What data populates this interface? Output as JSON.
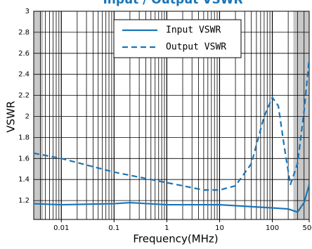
{
  "chart_data": {
    "type": "line",
    "title": "Input / Output VSWR",
    "xlabel": "Frequency(MHz)",
    "ylabel": "VSWR",
    "xscale": "log",
    "xlim": [
      0.003,
      500
    ],
    "ylim": [
      1.02,
      3.0
    ],
    "xticks": [
      0.01,
      0.1,
      1,
      10,
      100,
      500
    ],
    "yticks": [
      1.2,
      1.4,
      1.6,
      1.8,
      2.0,
      2.2,
      2.4,
      2.6,
      2.8,
      3.0
    ],
    "grid": true,
    "shaded_regions": [
      [
        0.003,
        0.0045
      ],
      [
        250,
        500
      ]
    ],
    "legend": "upper center",
    "series": [
      {
        "name": "Input VSWR",
        "color": "#1a75b8",
        "dash": "solid",
        "x": [
          0.003,
          0.01,
          0.1,
          0.2,
          1,
          10,
          100,
          200,
          300,
          400,
          500
        ],
        "values": [
          1.17,
          1.16,
          1.17,
          1.18,
          1.16,
          1.16,
          1.13,
          1.12,
          1.09,
          1.18,
          1.35
        ]
      },
      {
        "name": "Output VSWR",
        "color": "#1a75b8",
        "dash": "dashed",
        "x": [
          0.003,
          0.01,
          0.1,
          1,
          5,
          10,
          20,
          40,
          70,
          100,
          130,
          170,
          220,
          300,
          400,
          500
        ],
        "values": [
          1.65,
          1.6,
          1.47,
          1.37,
          1.3,
          1.3,
          1.34,
          1.55,
          2.0,
          2.18,
          2.1,
          1.7,
          1.35,
          1.55,
          2.05,
          2.55
        ]
      }
    ]
  }
}
